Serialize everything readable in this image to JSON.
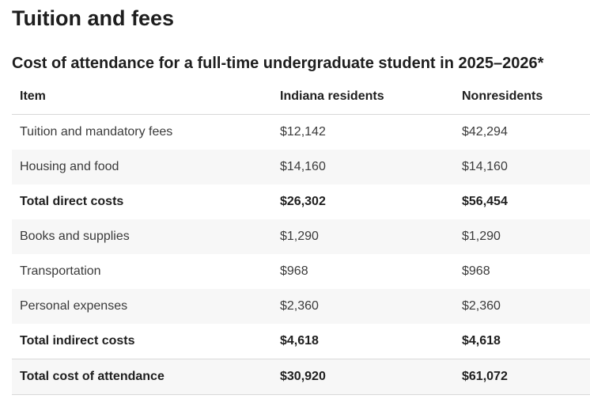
{
  "page_title": "Tuition and fees",
  "table": {
    "caption": "Cost of attendance for a full-time undergraduate student in 2025–2026*",
    "headers": [
      "Item",
      "Indiana residents",
      "Nonresidents"
    ],
    "rows": [
      [
        "Tuition and mandatory fees",
        "$12,142",
        "$42,294"
      ],
      [
        "Housing and food",
        "$14,160",
        "$14,160"
      ],
      [
        "Total direct costs",
        "$26,302",
        "$56,454"
      ],
      [
        "Books and supplies",
        "$1,290",
        "$1,290"
      ],
      [
        "Transportation",
        "$968",
        "$968"
      ],
      [
        "Personal expenses",
        "$2,360",
        "$2,360"
      ],
      [
        "Total indirect costs",
        "$4,618",
        "$4,618"
      ],
      [
        "Total cost of attendance",
        "$30,920",
        "$61,072"
      ]
    ]
  },
  "colors": {
    "text": "#1e1e1e",
    "body_text": "#3a3a3a",
    "stripe": "#f7f7f7",
    "border": "#d8d8d8"
  }
}
